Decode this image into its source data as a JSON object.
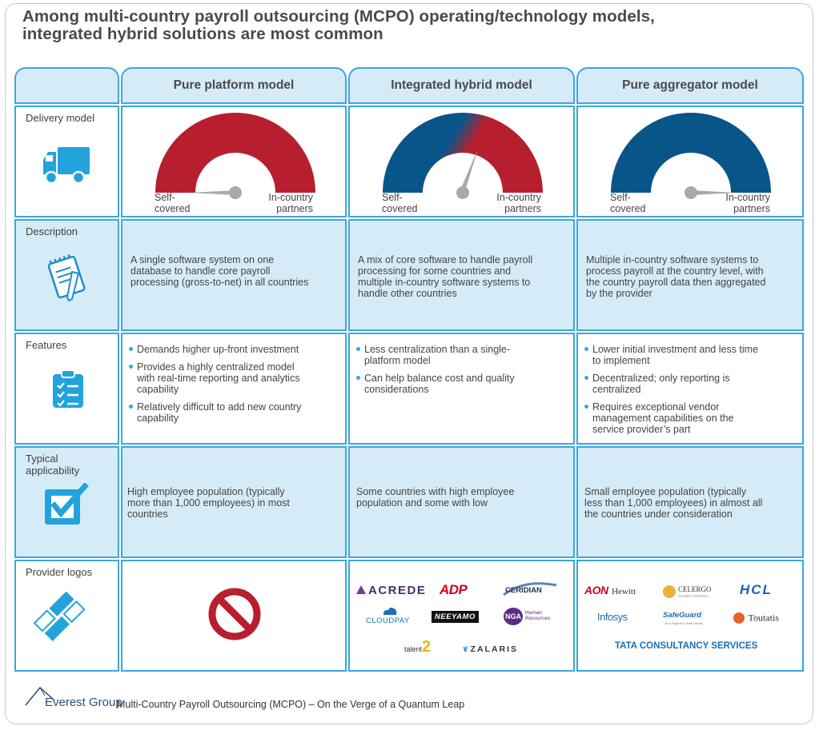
{
  "title": {
    "line1": "Among multi-country payroll outsourcing (MCPO) operating/technology models,",
    "line2": "integrated hybrid solutions are most common"
  },
  "columns": [
    {
      "heading": "Pure platform model"
    },
    {
      "heading": "Integrated hybrid model"
    },
    {
      "heading": "Pure aggregator model"
    }
  ],
  "rows": {
    "delivery": {
      "label": "Delivery model",
      "icon": "truck-icon"
    },
    "description": {
      "label": "Description",
      "icon": "notepad-pencil-icon"
    },
    "features": {
      "label": "Features",
      "icon": "clipboard-checklist-icon"
    },
    "applicability": {
      "label": "Typical applicability",
      "icon": "checkbox-icon"
    },
    "logos": {
      "label": "Provider logos",
      "icon": "diamond-blocks-icon"
    }
  },
  "gauge": {
    "left_label_1": "Self-",
    "left_label_2": "covered",
    "right_label_1": "In-country",
    "right_label_2": "partners",
    "colors": {
      "red": "#b71f2e",
      "blue": "#08558a"
    }
  },
  "descriptions": [
    [
      "A single software system on one",
      "database to handle core payroll",
      "processing (gross-to-net) in all countries"
    ],
    [
      "A mix of core software to handle payroll",
      "processing for some countries and",
      "multiple in-country software systems to",
      "handle other countries"
    ],
    [
      "Multiple in-country software systems to",
      "process payroll at the country level, with",
      "the country payroll data then aggregated",
      "by the provider"
    ]
  ],
  "features": [
    [
      [
        "Demands higher up-front investment"
      ],
      [
        "Provides a highly centralized model",
        "with real-time reporting and analytics",
        "capability"
      ],
      [
        "Relatively difficult to add new country",
        "capability"
      ]
    ],
    [
      [
        "Less centralization than a single-",
        "platform model"
      ],
      [
        "Can help balance cost and quality",
        "considerations"
      ]
    ],
    [
      [
        "Lower initial investment and less time",
        "to implement"
      ],
      [
        "Decentralized; only reporting is",
        "centralized"
      ],
      [
        "Requires exceptional vendor",
        "management capabilities on the",
        "service provider’s part"
      ]
    ]
  ],
  "applicability": [
    [
      "High employee population (typically",
      "more than 1,000 employees) in most",
      "countries"
    ],
    [
      "Some countries with high employee",
      "population and some with low"
    ],
    [
      "Small employee population (typically",
      "less than 1,000 employees) in almost all",
      "the countries under consideration"
    ]
  ],
  "hybrid_logos": {
    "acrede": "ACREDE",
    "adp": "ADP",
    "ceridian": "CERIDIAN",
    "cloudpay": "CLOUDPAY",
    "neeyamo": "NEEYAMO",
    "nga": "NGA",
    "nga_sub1": "Human",
    "nga_sub2": "Resources",
    "talent": "talent",
    "talent_num": "2",
    "zalaris": "ZALARIS"
  },
  "aggregator_logos": {
    "aon": "AON",
    "hewitt": "Hewitt",
    "celergo": "CELERGO",
    "celergo_sub": "GLOBAL PAYROLL",
    "hcl": "HCL",
    "infosys": "Infosys",
    "safeguard": "SafeGuard",
    "safeguard_sub": "Your Payroll in Safe Hands",
    "toutatis": "Toutatis",
    "tcs": "TATA CONSULTANCY SERVICES"
  },
  "footer": {
    "brand": "Everest Group",
    "report": "Multi-Country Payroll Outsourcing (MCPO) – On the Verge of a Quantum Leap"
  },
  "accent": "#3aa7dd"
}
